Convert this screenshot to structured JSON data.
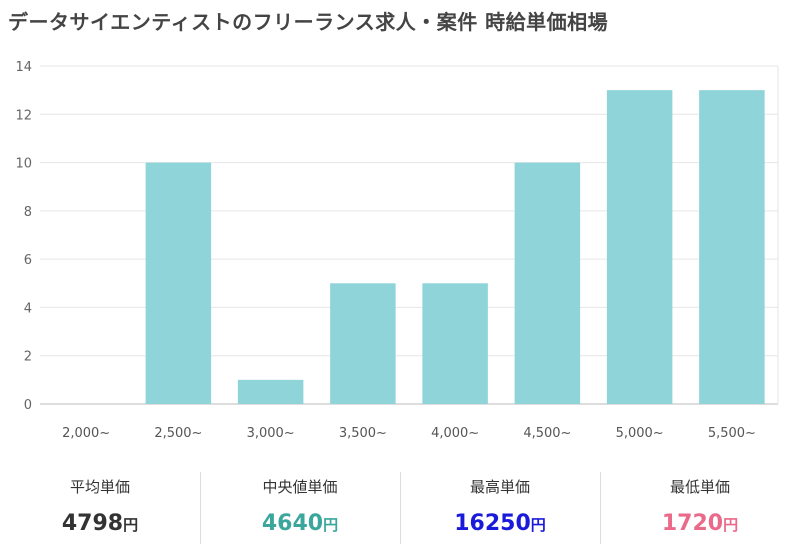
{
  "title": "データサイエンティストのフリーランス求人・案件 時給単価相場",
  "chart_data": {
    "type": "bar",
    "categories": [
      "2,000~",
      "2,500~",
      "3,000~",
      "3,500~",
      "4,000~",
      "4,500~",
      "5,000~",
      "5,500~"
    ],
    "values": [
      0,
      10,
      1,
      5,
      5,
      10,
      13,
      13
    ],
    "ylim": [
      0,
      14
    ],
    "yticks": [
      0,
      2,
      4,
      6,
      8,
      10,
      12,
      14
    ],
    "grid": true,
    "bar_color": "#8fd4d8"
  },
  "stats": [
    {
      "label": "平均単価",
      "value": "4798",
      "unit": "円",
      "color": "#333333"
    },
    {
      "label": "中央値単価",
      "value": "4640",
      "unit": "円",
      "color": "#3aa69c"
    },
    {
      "label": "最高単価",
      "value": "16250",
      "unit": "円",
      "color": "#1a1adb"
    },
    {
      "label": "最低単価",
      "value": "1720",
      "unit": "円",
      "color": "#ea6a8a"
    }
  ]
}
